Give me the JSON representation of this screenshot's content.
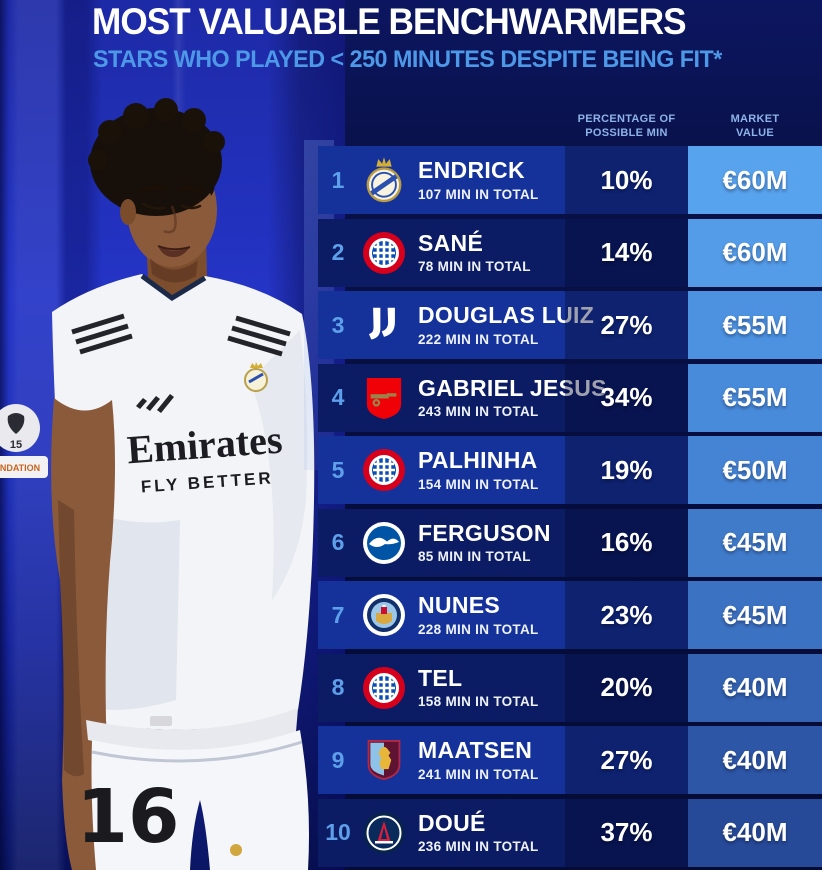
{
  "header": {
    "title": "MOST VALUABLE BENCHWARMERS",
    "subtitle": "STARS WHO PLAYED < 250 MINUTES DESPITE BEING FIT*"
  },
  "table": {
    "columns": {
      "pct_line1": "PERCENTAGE OF",
      "pct_line2": "POSSIBLE MIN",
      "value_line1": "MARKET",
      "value_line2": "VALUE"
    },
    "rows": [
      {
        "rank": "1",
        "club": "real-madrid",
        "player": "ENDRICK",
        "minutes": "107 MIN IN TOTAL",
        "pct": "10%",
        "value": "€60M",
        "value_bg": "#58a3ee"
      },
      {
        "rank": "2",
        "club": "bayern-munich",
        "player": "SANÉ",
        "minutes": "78 MIN IN TOTAL",
        "pct": "14%",
        "value": "€60M",
        "value_bg": "#549ce8"
      },
      {
        "rank": "3",
        "club": "juventus",
        "player": "DOUGLAS LUIZ",
        "minutes": "222 MIN IN TOTAL",
        "pct": "27%",
        "value": "€55M",
        "value_bg": "#4c92e0"
      },
      {
        "rank": "4",
        "club": "arsenal",
        "player": "GABRIEL JESUS",
        "minutes": "243 MIN IN TOTAL",
        "pct": "34%",
        "value": "€55M",
        "value_bg": "#488bda"
      },
      {
        "rank": "5",
        "club": "bayern-munich",
        "player": "PALHINHA",
        "minutes": "154 MIN IN TOTAL",
        "pct": "19%",
        "value": "€50M",
        "value_bg": "#4584d4"
      },
      {
        "rank": "6",
        "club": "brighton",
        "player": "FERGUSON",
        "minutes": "85 MIN IN TOTAL",
        "pct": "16%",
        "value": "€45M",
        "value_bg": "#407bca"
      },
      {
        "rank": "7",
        "club": "man-city",
        "player": "NUNES",
        "minutes": "228 MIN IN TOTAL",
        "pct": "23%",
        "value": "€45M",
        "value_bg": "#3c72c2"
      },
      {
        "rank": "8",
        "club": "bayern-munich",
        "player": "TEL",
        "minutes": "158 MIN IN TOTAL",
        "pct": "20%",
        "value": "€40M",
        "value_bg": "#3363b2"
      },
      {
        "rank": "9",
        "club": "aston-villa",
        "player": "MAATSEN",
        "minutes": "241 MIN IN TOTAL",
        "pct": "27%",
        "value": "€40M",
        "value_bg": "#2d56a6"
      },
      {
        "rank": "10",
        "club": "psg",
        "player": "DOUÉ",
        "minutes": "236 MIN IN TOTAL",
        "pct": "37%",
        "value": "€40M",
        "value_bg": "#274a98"
      }
    ]
  },
  "photo": {
    "jersey_sponsor": "Emirates",
    "jersey_sponsor_tagline": "FLY BETTER",
    "shorts_number": "16",
    "sleeve_patch_number": "15",
    "sleeve_patch_label": "NDATION"
  },
  "colors": {
    "row_odd": "#15329a",
    "row_even": "#0c1c64",
    "rank": "#5d9fe8",
    "subtitle": "#4d99e8",
    "header_label": "#8db3e8",
    "title": "#ffffff"
  }
}
